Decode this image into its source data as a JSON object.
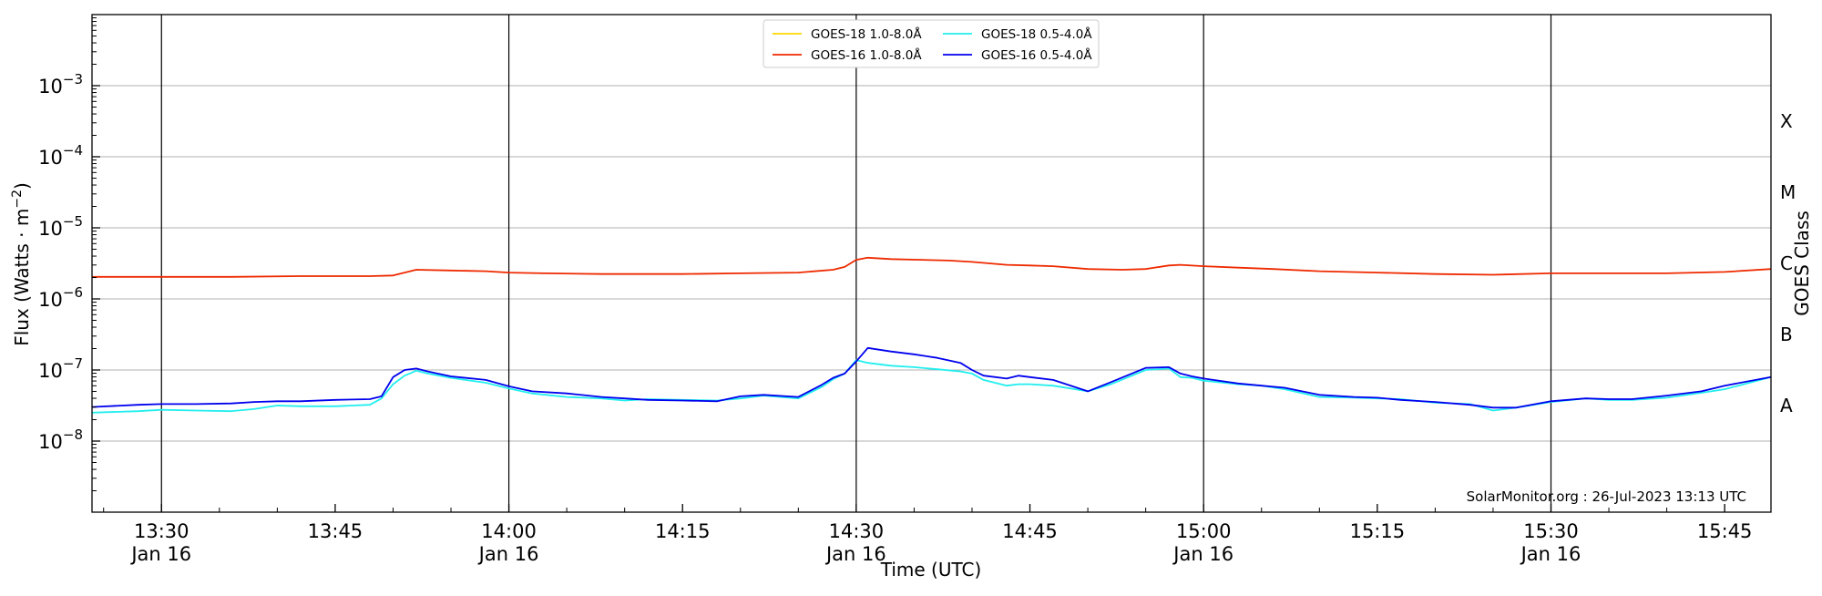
{
  "chart_data": {
    "type": "line",
    "xlabel": "Time (UTC)",
    "ylabel": "Flux (Watts · m",
    "ylabel_sup": "−2",
    "ylabel_close": ")",
    "right_axis_label": "GOES Class",
    "credit": "SolarMonitor.org : 26-Jul-2023 13:13 UTC",
    "x_unit": "minutes after 13:00 UTC on Jan 16",
    "xlim": [
      24.0,
      169.0
    ],
    "ylim_log10": [
      -9,
      -2
    ],
    "yscale": "log",
    "grid": "horizontal at decades",
    "legend_position": "top-center",
    "y_ticks": [
      {
        "exp": -8,
        "base": "10",
        "sup": "−8"
      },
      {
        "exp": -7,
        "base": "10",
        "sup": "−7"
      },
      {
        "exp": -6,
        "base": "10",
        "sup": "−6"
      },
      {
        "exp": -5,
        "base": "10",
        "sup": "−5"
      },
      {
        "exp": -4,
        "base": "10",
        "sup": "−4"
      },
      {
        "exp": -3,
        "base": "10",
        "sup": "−3"
      }
    ],
    "x_ticks": [
      {
        "t": 30,
        "label": "13:30",
        "sub": "Jan 16",
        "vline": true
      },
      {
        "t": 45,
        "label": "13:45",
        "sub": "",
        "vline": false
      },
      {
        "t": 60,
        "label": "14:00",
        "sub": "Jan 16",
        "vline": true
      },
      {
        "t": 75,
        "label": "14:15",
        "sub": "",
        "vline": false
      },
      {
        "t": 90,
        "label": "14:30",
        "sub": "Jan 16",
        "vline": true
      },
      {
        "t": 105,
        "label": "14:45",
        "sub": "",
        "vline": false
      },
      {
        "t": 120,
        "label": "15:00",
        "sub": "Jan 16",
        "vline": true
      },
      {
        "t": 135,
        "label": "15:15",
        "sub": "",
        "vline": false
      },
      {
        "t": 150,
        "label": "15:30",
        "sub": "Jan 16",
        "vline": true
      },
      {
        "t": 165,
        "label": "15:45",
        "sub": "",
        "vline": false
      }
    ],
    "goes_classes": [
      {
        "label": "A",
        "exp": -7.5
      },
      {
        "label": "B",
        "exp": -6.5
      },
      {
        "label": "C",
        "exp": -5.5
      },
      {
        "label": "M",
        "exp": -4.5
      },
      {
        "label": "X",
        "exp": -3.5
      }
    ],
    "legend": [
      {
        "label": "GOES-18 1.0-8.0Å",
        "color": "#ffd700"
      },
      {
        "label": "GOES-16 1.0-8.0Å",
        "color": "#ee2a00"
      },
      {
        "label": "GOES-18 0.5-4.0Å",
        "color": "#22eeee"
      },
      {
        "label": "GOES-16 0.5-4.0Å",
        "color": "#0000ee"
      }
    ],
    "series": [
      {
        "name": "GOES-16 1.0-8.0Å",
        "color": "#ee2a00",
        "x": [
          24,
          30,
          36,
          42,
          48,
          50,
          52,
          55,
          58,
          60,
          63,
          68,
          75,
          80,
          85,
          88,
          89,
          90,
          91,
          93,
          98,
          100,
          103,
          105,
          107,
          110,
          113,
          115,
          117,
          118,
          120,
          123,
          126,
          130,
          135,
          140,
          145,
          150,
          155,
          160,
          165,
          169
        ],
        "y_log10": [
          -5.69,
          -5.69,
          -5.69,
          -5.68,
          -5.68,
          -5.67,
          -5.59,
          -5.6,
          -5.61,
          -5.63,
          -5.64,
          -5.65,
          -5.65,
          -5.64,
          -5.63,
          -5.59,
          -5.55,
          -5.45,
          -5.42,
          -5.44,
          -5.46,
          -5.48,
          -5.52,
          -5.53,
          -5.54,
          -5.58,
          -5.59,
          -5.58,
          -5.53,
          -5.52,
          -5.54,
          -5.56,
          -5.58,
          -5.61,
          -5.63,
          -5.65,
          -5.66,
          -5.64,
          -5.64,
          -5.64,
          -5.62,
          -5.58
        ]
      },
      {
        "name": "GOES-18 0.5-4.0Å",
        "color": "#22eeee",
        "x": [
          24,
          28,
          30,
          33,
          36,
          38,
          40,
          42,
          45,
          48,
          49,
          50,
          51,
          52,
          53,
          55,
          58,
          60,
          62,
          65,
          68,
          70,
          72,
          75,
          78,
          80,
          82,
          85,
          87,
          88,
          89,
          90,
          91,
          93,
          95,
          97,
          99,
          100,
          101,
          103,
          104,
          105,
          107,
          110,
          112,
          115,
          117,
          118,
          119,
          120,
          123,
          125,
          127,
          130,
          133,
          135,
          137,
          140,
          143,
          145,
          147,
          150,
          153,
          155,
          157,
          160,
          163,
          165,
          169
        ],
        "y_log10": [
          -7.6,
          -7.58,
          -7.56,
          -7.57,
          -7.58,
          -7.55,
          -7.5,
          -7.51,
          -7.51,
          -7.49,
          -7.4,
          -7.2,
          -7.08,
          -7.01,
          -7.05,
          -7.11,
          -7.18,
          -7.26,
          -7.33,
          -7.38,
          -7.4,
          -7.43,
          -7.41,
          -7.42,
          -7.43,
          -7.4,
          -7.36,
          -7.4,
          -7.24,
          -7.13,
          -7.05,
          -6.86,
          -6.9,
          -6.94,
          -6.96,
          -6.99,
          -7.02,
          -7.05,
          -7.14,
          -7.22,
          -7.2,
          -7.2,
          -7.22,
          -7.3,
          -7.2,
          -7.0,
          -6.98,
          -7.1,
          -7.11,
          -7.15,
          -7.2,
          -7.22,
          -7.27,
          -7.38,
          -7.39,
          -7.4,
          -7.41,
          -7.46,
          -7.48,
          -7.57,
          -7.53,
          -7.45,
          -7.4,
          -7.42,
          -7.42,
          -7.39,
          -7.32,
          -7.27,
          -7.1
        ]
      },
      {
        "name": "GOES-16 0.5-4.0Å",
        "color": "#0000ee",
        "x": [
          24,
          28,
          30,
          33,
          36,
          38,
          40,
          42,
          45,
          48,
          49,
          50,
          51,
          52,
          53,
          55,
          58,
          60,
          62,
          65,
          68,
          70,
          72,
          75,
          78,
          80,
          82,
          85,
          87,
          88,
          89,
          90,
          91,
          93,
          95,
          97,
          99,
          100,
          101,
          103,
          104,
          105,
          107,
          110,
          112,
          115,
          117,
          118,
          119,
          120,
          123,
          125,
          127,
          130,
          133,
          135,
          137,
          140,
          143,
          145,
          147,
          150,
          153,
          155,
          157,
          160,
          163,
          165,
          169
        ],
        "y_log10": [
          -7.52,
          -7.49,
          -7.48,
          -7.48,
          -7.47,
          -7.45,
          -7.44,
          -7.44,
          -7.42,
          -7.41,
          -7.37,
          -7.1,
          -7.0,
          -6.98,
          -7.02,
          -7.09,
          -7.14,
          -7.23,
          -7.3,
          -7.33,
          -7.38,
          -7.4,
          -7.42,
          -7.43,
          -7.44,
          -7.37,
          -7.35,
          -7.38,
          -7.21,
          -7.11,
          -7.05,
          -6.88,
          -6.69,
          -6.74,
          -6.78,
          -6.83,
          -6.9,
          -7.0,
          -7.08,
          -7.12,
          -7.08,
          -7.1,
          -7.14,
          -7.3,
          -7.17,
          -6.97,
          -6.96,
          -7.05,
          -7.09,
          -7.12,
          -7.19,
          -7.22,
          -7.25,
          -7.35,
          -7.38,
          -7.39,
          -7.42,
          -7.45,
          -7.49,
          -7.53,
          -7.53,
          -7.44,
          -7.4,
          -7.41,
          -7.41,
          -7.36,
          -7.3,
          -7.22,
          -7.1
        ]
      },
      {
        "name": "GOES-18 1.0-8.0Å",
        "color": "#ffd700",
        "x": [],
        "y_log10": []
      }
    ]
  }
}
